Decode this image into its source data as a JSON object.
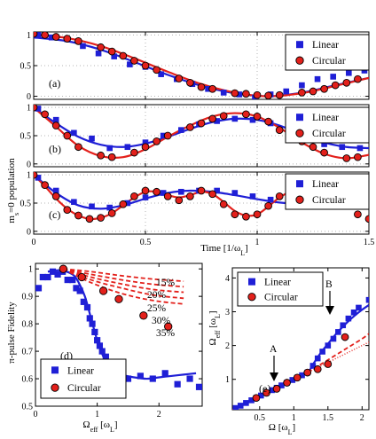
{
  "colors": {
    "linear": "#1f1fd6",
    "circular": "#e3201b",
    "axis": "#000000",
    "grid": "#b5b5b5"
  },
  "legend": {
    "linear": "Linear",
    "circular": "Circular"
  },
  "chart_data": [
    {
      "type": "scatter",
      "panel": "(a)",
      "ylabel": "m_s=0 population",
      "xlim": [
        0,
        1.5
      ],
      "ylim": [
        -0.05,
        1.05
      ],
      "yticks": [
        "0",
        "0.5",
        "1"
      ],
      "grid": true,
      "legend_position": "top-right",
      "series": [
        {
          "name": "Linear",
          "x": [
            0.02,
            0.08,
            0.15,
            0.22,
            0.29,
            0.36,
            0.43,
            0.5,
            0.57,
            0.64,
            0.71,
            0.78,
            0.85,
            0.92,
            0.99,
            1.06,
            1.13,
            1.2,
            1.27,
            1.34,
            1.41,
            1.48
          ],
          "y": [
            1.0,
            0.96,
            0.93,
            0.82,
            0.7,
            0.65,
            0.52,
            0.48,
            0.36,
            0.28,
            0.2,
            0.12,
            0.06,
            0.03,
            -0.02,
            0.03,
            0.08,
            0.18,
            0.28,
            0.32,
            0.38,
            0.42
          ]
        },
        {
          "name": "Circular",
          "x": [
            0.0,
            0.05,
            0.1,
            0.15,
            0.2,
            0.3,
            0.35,
            0.4,
            0.45,
            0.5,
            0.55,
            0.65,
            0.7,
            0.75,
            0.8,
            0.9,
            0.95,
            1.0,
            1.05,
            1.1,
            1.2,
            1.25,
            1.3,
            1.35,
            1.4,
            1.45
          ],
          "y": [
            1.02,
            1.0,
            0.97,
            0.94,
            0.9,
            0.8,
            0.73,
            0.66,
            0.58,
            0.5,
            0.43,
            0.29,
            0.22,
            0.15,
            0.12,
            0.05,
            0.04,
            0.02,
            0.01,
            0.02,
            0.06,
            0.08,
            0.12,
            0.18,
            0.22,
            0.28
          ]
        },
        {
          "name": "fit-linear",
          "style": "line",
          "x": [
            0,
            0.15,
            0.3,
            0.45,
            0.6,
            0.75,
            0.9,
            1.05,
            1.2,
            1.35,
            1.5
          ],
          "y": [
            0.96,
            0.9,
            0.76,
            0.56,
            0.35,
            0.17,
            0.05,
            0.0,
            0.06,
            0.18,
            0.3
          ]
        },
        {
          "name": "fit-circular",
          "style": "line",
          "x": [
            0,
            0.15,
            0.3,
            0.45,
            0.6,
            0.75,
            0.9,
            1.05,
            1.2,
            1.35,
            1.5
          ],
          "y": [
            1.0,
            0.95,
            0.82,
            0.62,
            0.4,
            0.2,
            0.06,
            0.0,
            0.05,
            0.17,
            0.3
          ]
        }
      ]
    },
    {
      "type": "scatter",
      "panel": "(b)",
      "xlim": [
        0,
        1.5
      ],
      "ylim": [
        -0.05,
        1.05
      ],
      "yticks": [
        "0",
        "0.5",
        "1"
      ],
      "grid": true,
      "legend_position": "top-right",
      "series": [
        {
          "name": "Linear",
          "x": [
            0.02,
            0.1,
            0.18,
            0.26,
            0.34,
            0.42,
            0.5,
            0.58,
            0.66,
            0.74,
            0.82,
            0.9,
            0.98,
            1.06,
            1.14,
            1.22,
            1.3,
            1.38,
            1.46
          ],
          "y": [
            0.98,
            0.78,
            0.55,
            0.45,
            0.28,
            0.3,
            0.38,
            0.5,
            0.6,
            0.7,
            0.76,
            0.8,
            0.78,
            0.72,
            0.58,
            0.46,
            0.35,
            0.3,
            0.28
          ]
        },
        {
          "name": "Circular",
          "x": [
            0.0,
            0.05,
            0.1,
            0.15,
            0.2,
            0.3,
            0.35,
            0.45,
            0.5,
            0.55,
            0.6,
            0.7,
            0.75,
            0.8,
            0.85,
            0.95,
            1.0,
            1.05,
            1.1,
            1.2,
            1.25,
            1.3,
            1.4,
            1.45
          ],
          "y": [
            1.0,
            0.88,
            0.68,
            0.5,
            0.3,
            0.15,
            0.12,
            0.2,
            0.3,
            0.4,
            0.5,
            0.65,
            0.72,
            0.8,
            0.85,
            0.88,
            0.84,
            0.75,
            0.6,
            0.4,
            0.3,
            0.2,
            0.1,
            0.12
          ]
        },
        {
          "name": "fit-linear",
          "style": "line",
          "x": [
            0,
            0.1,
            0.2,
            0.3,
            0.4,
            0.5,
            0.6,
            0.7,
            0.8,
            0.9,
            1.0,
            1.1,
            1.2,
            1.3,
            1.4,
            1.5
          ],
          "y": [
            1.0,
            0.72,
            0.48,
            0.34,
            0.3,
            0.36,
            0.48,
            0.62,
            0.74,
            0.8,
            0.78,
            0.68,
            0.52,
            0.38,
            0.3,
            0.28
          ]
        },
        {
          "name": "fit-circular",
          "style": "line",
          "x": [
            0,
            0.1,
            0.2,
            0.3,
            0.4,
            0.5,
            0.6,
            0.7,
            0.8,
            0.9,
            1.0,
            1.1,
            1.2,
            1.3,
            1.4,
            1.5
          ],
          "y": [
            1.0,
            0.66,
            0.32,
            0.14,
            0.12,
            0.26,
            0.48,
            0.68,
            0.84,
            0.9,
            0.84,
            0.64,
            0.38,
            0.18,
            0.1,
            0.16
          ]
        }
      ]
    },
    {
      "type": "scatter",
      "panel": "(c)",
      "xlabel": "Time [1/ω_L]",
      "xlim": [
        0,
        1.5
      ],
      "ylim": [
        -0.05,
        1.05
      ],
      "xticks": [
        "0",
        "0.5",
        "1",
        "1.5"
      ],
      "yticks": [
        "0",
        "0.5",
        "1"
      ],
      "grid": true,
      "legend_position": "top-right",
      "series": [
        {
          "name": "Linear",
          "x": [
            0.02,
            0.1,
            0.18,
            0.26,
            0.34,
            0.42,
            0.5,
            0.58,
            0.66,
            0.74,
            0.82,
            0.9,
            0.98,
            1.06,
            1.14,
            1.22,
            1.3,
            1.38,
            1.46
          ],
          "y": [
            0.95,
            0.72,
            0.52,
            0.44,
            0.42,
            0.5,
            0.6,
            0.68,
            0.7,
            0.72,
            0.72,
            0.68,
            0.62,
            0.56,
            0.5,
            0.48,
            0.5,
            0.52,
            0.5
          ]
        },
        {
          "name": "Circular",
          "x": [
            0.0,
            0.05,
            0.1,
            0.15,
            0.2,
            0.25,
            0.3,
            0.35,
            0.4,
            0.45,
            0.5,
            0.55,
            0.6,
            0.65,
            0.7,
            0.75,
            0.8,
            0.85,
            0.9,
            0.95,
            1.0,
            1.05,
            1.1,
            1.15,
            1.2,
            1.4,
            1.45,
            1.5
          ],
          "y": [
            1.0,
            0.82,
            0.62,
            0.38,
            0.28,
            0.22,
            0.24,
            0.32,
            0.48,
            0.62,
            0.72,
            0.7,
            0.62,
            0.55,
            0.62,
            0.72,
            0.66,
            0.48,
            0.3,
            0.26,
            0.3,
            0.45,
            0.62,
            0.72,
            0.68,
            0.48,
            0.3,
            0.22
          ]
        },
        {
          "name": "fit-linear",
          "style": "line",
          "x": [
            0,
            0.1,
            0.2,
            0.3,
            0.4,
            0.5,
            0.6,
            0.7,
            0.8,
            0.9,
            1.0,
            1.1,
            1.2,
            1.3,
            1.4,
            1.5
          ],
          "y": [
            1.0,
            0.68,
            0.46,
            0.4,
            0.46,
            0.58,
            0.68,
            0.72,
            0.7,
            0.64,
            0.57,
            0.51,
            0.48,
            0.48,
            0.5,
            0.5
          ]
        },
        {
          "name": "fit-circular",
          "style": "line",
          "x": [
            0,
            0.05,
            0.1,
            0.15,
            0.2,
            0.25,
            0.3,
            0.35,
            0.4,
            0.45,
            0.5,
            0.55,
            0.6,
            0.65,
            0.7,
            0.75,
            0.8,
            0.85,
            0.9,
            0.95,
            1.0,
            1.05,
            1.1,
            1.15,
            1.2
          ],
          "y": [
            1.0,
            0.8,
            0.58,
            0.4,
            0.28,
            0.22,
            0.24,
            0.32,
            0.46,
            0.6,
            0.7,
            0.7,
            0.64,
            0.6,
            0.64,
            0.7,
            0.66,
            0.52,
            0.36,
            0.28,
            0.3,
            0.44,
            0.6,
            0.7,
            0.68
          ]
        }
      ]
    },
    {
      "type": "scatter",
      "panel": "(d)",
      "xlabel": "Ω_eff [ω_L]",
      "ylabel": "π-pulse Fidelity",
      "xlim": [
        0,
        2.7
      ],
      "ylim": [
        0.5,
        1.02
      ],
      "xticks": [
        "0",
        "1",
        "2"
      ],
      "yticks": [
        "0.5",
        "0.6",
        "0.7",
        "0.8",
        "0.9",
        "1"
      ],
      "legend_position": "bottom-left",
      "annotations": [
        "15%",
        "20%",
        "25%",
        "30%",
        "35%"
      ],
      "series": [
        {
          "name": "Linear",
          "x": [
            0.05,
            0.12,
            0.2,
            0.28,
            0.36,
            0.44,
            0.52,
            0.6,
            0.66,
            0.72,
            0.78,
            0.84,
            0.88,
            0.92,
            0.96,
            1.0,
            1.04,
            1.08,
            1.14,
            1.2,
            1.3,
            1.5,
            1.7,
            1.9,
            2.1,
            2.3,
            2.5,
            2.65
          ],
          "y": [
            0.93,
            0.97,
            0.97,
            0.99,
            0.98,
            0.99,
            0.96,
            0.96,
            0.93,
            0.92,
            0.88,
            0.86,
            0.82,
            0.8,
            0.77,
            0.74,
            0.72,
            0.7,
            0.68,
            0.64,
            0.63,
            0.6,
            0.61,
            0.6,
            0.62,
            0.58,
            0.6,
            0.57
          ]
        },
        {
          "name": "Circular",
          "x": [
            0.45,
            0.75,
            1.1,
            1.35,
            1.75,
            2.15
          ],
          "y": [
            1.0,
            0.97,
            0.92,
            0.89,
            0.83,
            0.79
          ]
        },
        {
          "name": "fit-linear",
          "style": "line",
          "x": [
            0.2,
            0.4,
            0.6,
            0.7,
            0.8,
            0.9,
            1.0,
            1.1,
            1.2,
            1.4,
            1.6,
            1.8,
            2.0,
            2.2,
            2.4,
            2.6
          ],
          "y": [
            0.99,
            0.995,
            0.98,
            0.95,
            0.9,
            0.82,
            0.74,
            0.68,
            0.64,
            0.615,
            0.605,
            0.6,
            0.605,
            0.61,
            0.615,
            0.62
          ]
        },
        {
          "name": "dashed-15%",
          "style": "dashed",
          "x": [
            0.45,
            0.9,
            1.4,
            1.9,
            2.4
          ],
          "y": [
            1.0,
            0.99,
            0.975,
            0.963,
            0.955
          ]
        },
        {
          "name": "dashed-20%",
          "style": "dashed",
          "x": [
            0.45,
            0.9,
            1.4,
            1.9,
            2.4
          ],
          "y": [
            1.0,
            0.98,
            0.96,
            0.944,
            0.935
          ]
        },
        {
          "name": "dashed-25%",
          "style": "dashed",
          "x": [
            0.45,
            0.9,
            1.4,
            1.9,
            2.4
          ],
          "y": [
            1.0,
            0.97,
            0.945,
            0.925,
            0.915
          ]
        },
        {
          "name": "dashed-30%",
          "style": "dashed",
          "x": [
            0.45,
            0.9,
            1.4,
            1.9,
            2.4
          ],
          "y": [
            1.0,
            0.96,
            0.93,
            0.905,
            0.893
          ]
        },
        {
          "name": "dashed-35%",
          "style": "dashed",
          "x": [
            0.45,
            0.9,
            1.4,
            1.9,
            2.4
          ],
          "y": [
            1.0,
            0.95,
            0.91,
            0.885,
            0.872
          ]
        }
      ]
    },
    {
      "type": "scatter",
      "panel": "(e)",
      "xlabel": "Ω [ω_L]",
      "ylabel": "Ω_eff [ω_L]",
      "xlim": [
        0.1,
        2.1
      ],
      "ylim": [
        0.1,
        4.3
      ],
      "xticks": [
        "0.5",
        "1",
        "1.5",
        "2"
      ],
      "yticks": [
        "1",
        "2",
        "3",
        "4"
      ],
      "legend_position": "top-left",
      "annotations": [
        "A",
        "B"
      ],
      "series": [
        {
          "name": "Linear",
          "x": [
            0.15,
            0.22,
            0.3,
            0.38,
            0.45,
            0.52,
            0.6,
            0.68,
            0.75,
            0.82,
            0.9,
            0.98,
            1.05,
            1.12,
            1.2,
            1.28,
            1.35,
            1.42,
            1.5,
            1.58,
            1.65,
            1.72,
            1.8,
            1.88,
            1.95,
            2.1
          ],
          "y": [
            0.15,
            0.22,
            0.3,
            0.38,
            0.45,
            0.52,
            0.6,
            0.68,
            0.75,
            0.82,
            0.9,
            0.98,
            1.05,
            1.12,
            1.2,
            1.4,
            1.62,
            1.82,
            2.0,
            2.2,
            2.4,
            2.6,
            2.8,
            2.98,
            3.12,
            3.35
          ]
        },
        {
          "name": "Circular",
          "x": [
            0.45,
            0.6,
            0.75,
            0.9,
            1.05,
            1.2,
            1.35,
            1.5,
            1.75
          ],
          "y": [
            0.45,
            0.6,
            0.72,
            0.9,
            1.05,
            1.2,
            1.3,
            1.45,
            2.25
          ]
        },
        {
          "name": "fit-linear",
          "style": "line",
          "x": [
            0.1,
            0.4,
            0.7,
            1.0,
            1.2,
            1.3,
            1.4,
            1.5,
            1.6,
            1.7,
            1.8,
            1.9,
            2.0,
            2.1
          ],
          "y": [
            0.1,
            0.4,
            0.7,
            1.0,
            1.2,
            1.5,
            1.8,
            2.05,
            2.3,
            2.52,
            2.72,
            2.9,
            3.06,
            3.2
          ]
        },
        {
          "name": "dashed-circular",
          "style": "dashed",
          "x": [
            1.2,
            1.4,
            1.6,
            1.8,
            2.0,
            2.1
          ],
          "y": [
            1.22,
            1.45,
            1.7,
            1.95,
            2.2,
            2.35
          ]
        },
        {
          "name": "dotted-identity",
          "style": "dotted",
          "x": [
            0.1,
            2.1
          ],
          "y": [
            0.1,
            2.1
          ]
        }
      ]
    }
  ]
}
